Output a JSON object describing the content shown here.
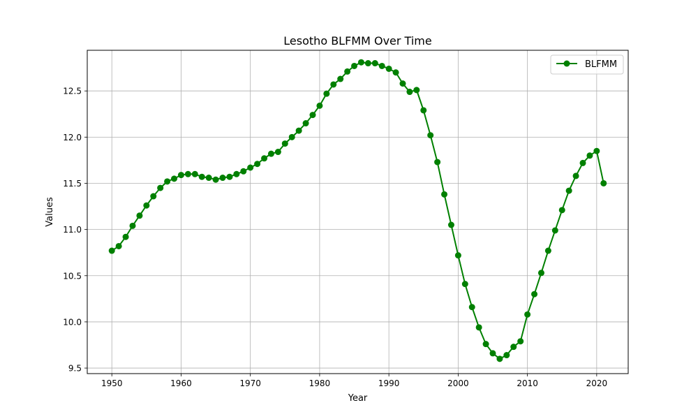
{
  "chart_data": {
    "type": "line",
    "title": "Lesotho BLFMM Over Time",
    "xlabel": "Year",
    "ylabel": "Values",
    "xlim": [
      1946.45,
      2024.55
    ],
    "ylim": [
      9.44,
      12.94
    ],
    "xticks": [
      1950,
      1960,
      1970,
      1980,
      1990,
      2000,
      2010,
      2020
    ],
    "yticks": [
      9.5,
      10.0,
      10.5,
      11.0,
      11.5,
      12.0,
      12.5
    ],
    "ytick_labels": [
      "9.5",
      "10.0",
      "10.5",
      "11.0",
      "11.5",
      "12.0",
      "12.5"
    ],
    "grid": true,
    "legend_position": "top-right",
    "series": [
      {
        "name": "BLFMM",
        "color": "#008000",
        "marker": "circle",
        "x": [
          1950,
          1951,
          1952,
          1953,
          1954,
          1955,
          1956,
          1957,
          1958,
          1959,
          1960,
          1961,
          1962,
          1963,
          1964,
          1965,
          1966,
          1967,
          1968,
          1969,
          1970,
          1971,
          1972,
          1973,
          1974,
          1975,
          1976,
          1977,
          1978,
          1979,
          1980,
          1981,
          1982,
          1983,
          1984,
          1985,
          1986,
          1987,
          1988,
          1989,
          1990,
          1991,
          1992,
          1993,
          1994,
          1995,
          1996,
          1997,
          1998,
          1999,
          2000,
          2001,
          2002,
          2003,
          2004,
          2005,
          2006,
          2007,
          2008,
          2009,
          2010,
          2011,
          2012,
          2013,
          2014,
          2015,
          2016,
          2017,
          2018,
          2019,
          2020,
          2021
        ],
        "y": [
          10.77,
          10.82,
          10.92,
          11.04,
          11.15,
          11.26,
          11.36,
          11.45,
          11.52,
          11.55,
          11.59,
          11.6,
          11.6,
          11.57,
          11.56,
          11.54,
          11.56,
          11.57,
          11.6,
          11.63,
          11.67,
          11.71,
          11.77,
          11.82,
          11.84,
          11.93,
          12.0,
          12.07,
          12.15,
          12.24,
          12.34,
          12.47,
          12.57,
          12.63,
          12.71,
          12.77,
          12.81,
          12.8,
          12.8,
          12.77,
          12.74,
          12.7,
          12.58,
          12.49,
          12.51,
          12.29,
          12.02,
          11.73,
          11.38,
          11.05,
          10.72,
          10.41,
          10.16,
          9.94,
          9.76,
          9.66,
          9.6,
          9.64,
          9.73,
          9.79,
          10.08,
          10.3,
          10.53,
          10.77,
          10.99,
          11.21,
          11.42,
          11.58,
          11.72,
          11.8,
          11.85,
          11.5
        ]
      }
    ]
  }
}
